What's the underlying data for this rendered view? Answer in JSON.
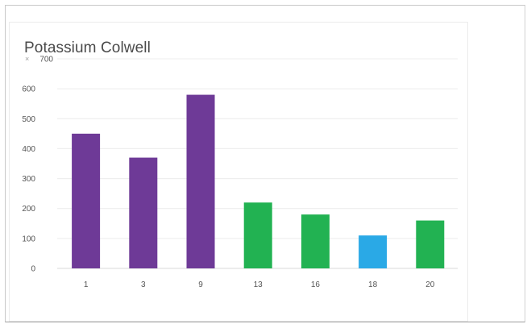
{
  "chart_data": {
    "type": "bar",
    "title": "Potassium Colwell",
    "axis_marker": "×",
    "xlabel": "",
    "ylabel": "",
    "categories": [
      "1",
      "3",
      "9",
      "13",
      "16",
      "18",
      "20"
    ],
    "values": [
      450,
      370,
      580,
      220,
      180,
      110,
      160
    ],
    "bar_colors": [
      "#6e3a97",
      "#6e3a97",
      "#6e3a97",
      "#22b252",
      "#22b252",
      "#2aa9e6",
      "#22b252"
    ],
    "ylim": [
      0,
      700
    ],
    "yticks": [
      "0",
      "100",
      "200",
      "300",
      "400",
      "500",
      "600",
      "700"
    ],
    "grid": true,
    "legend": "none"
  }
}
